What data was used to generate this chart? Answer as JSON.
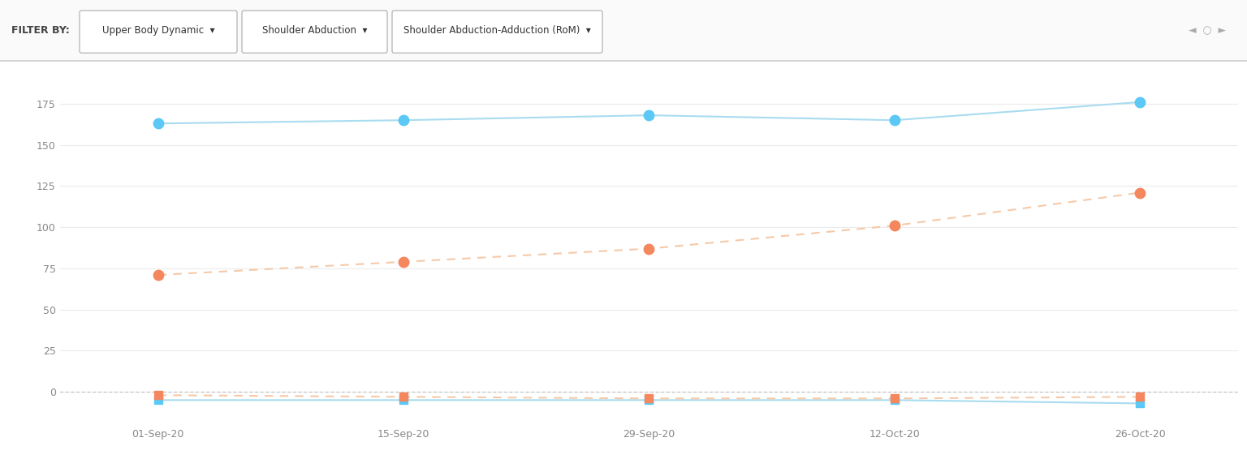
{
  "x_labels": [
    "01-Sep-20",
    "15-Sep-20",
    "29-Sep-20",
    "12-Oct-20",
    "26-Oct-20"
  ],
  "x_positions": [
    0,
    1,
    2,
    3,
    4
  ],
  "blue_abduction_circles": [
    163,
    165,
    168,
    165,
    176
  ],
  "blue_adduction_squares": [
    -5,
    -5,
    -5,
    -5,
    -7
  ],
  "orange_abduction_circles": [
    71,
    79,
    87,
    101,
    121
  ],
  "orange_adduction_squares": [
    -2,
    -3,
    -4,
    -4,
    -3
  ],
  "blue_color": "#5BC8F5",
  "blue_line_color": "#A8DCEF",
  "orange_color": "#F5875F",
  "orange_line_color": "#F5C9A8",
  "bg_color": "#FFFFFF",
  "grid_color": "#EBEBEB",
  "zero_line_color": "#BBBBBB",
  "ylim_min": -20,
  "ylim_max": 195,
  "yticks": [
    0,
    25,
    50,
    75,
    100,
    125,
    150,
    175
  ],
  "marker_size_circle": 9,
  "marker_size_square": 7,
  "line_width": 1.5,
  "filter_label": "FILTER BY:",
  "btn_labels": [
    "Upper Body Dynamic",
    "Shoulder Abduction",
    "Shoulder Abduction-Adduction (RoM)"
  ],
  "arrow_symbol": "▾",
  "nav_symbols": "◄  ○  ►"
}
